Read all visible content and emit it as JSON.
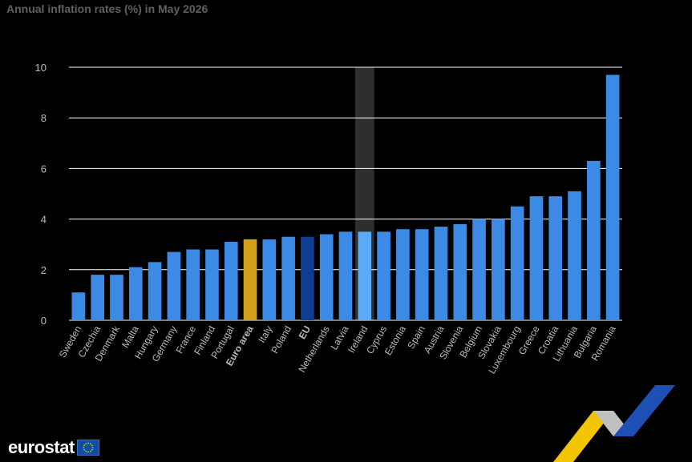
{
  "chart_data": {
    "type": "bar",
    "title": "Annual inflation rates (%) in May 2026",
    "categories": [
      "Sweden",
      "Czechia",
      "Denmark",
      "Malta",
      "Hungary",
      "Germany",
      "France",
      "Finland",
      "Portugal",
      "Euro area",
      "Italy",
      "Poland",
      "EU",
      "Netherlands",
      "Latvia",
      "Ireland",
      "Cyprus",
      "Estonia",
      "Spain",
      "Austria",
      "Slovenia",
      "Belgium",
      "Slovakia",
      "Luxembourg",
      "Greece",
      "Croatia",
      "Lithuania",
      "Bulgaria",
      "Romania"
    ],
    "values": [
      1.1,
      1.8,
      1.8,
      2.1,
      2.3,
      2.7,
      2.8,
      2.8,
      3.1,
      3.2,
      3.2,
      3.3,
      3.3,
      3.4,
      3.5,
      3.5,
      3.5,
      3.6,
      3.6,
      3.7,
      3.8,
      4.0,
      4.0,
      4.5,
      4.9,
      4.9,
      5.1,
      6.3,
      9.7
    ],
    "ylim": [
      0,
      10
    ],
    "yticks": [
      0,
      2,
      4,
      6,
      8,
      10
    ],
    "grid": true,
    "bold_categories": [
      "Euro area",
      "EU"
    ],
    "highlighted_category": "Ireland",
    "colors": {
      "default": "#3b8ae6",
      "euro_area": "#d4a017",
      "eu": "#0f3d91",
      "highlighted": "#5aaaf5",
      "highlight_band": "#2e2e2e",
      "grid": "#ffffff",
      "tick_text": "#bbbbbb"
    }
  },
  "footer": {
    "logo_text": "eurostat"
  }
}
